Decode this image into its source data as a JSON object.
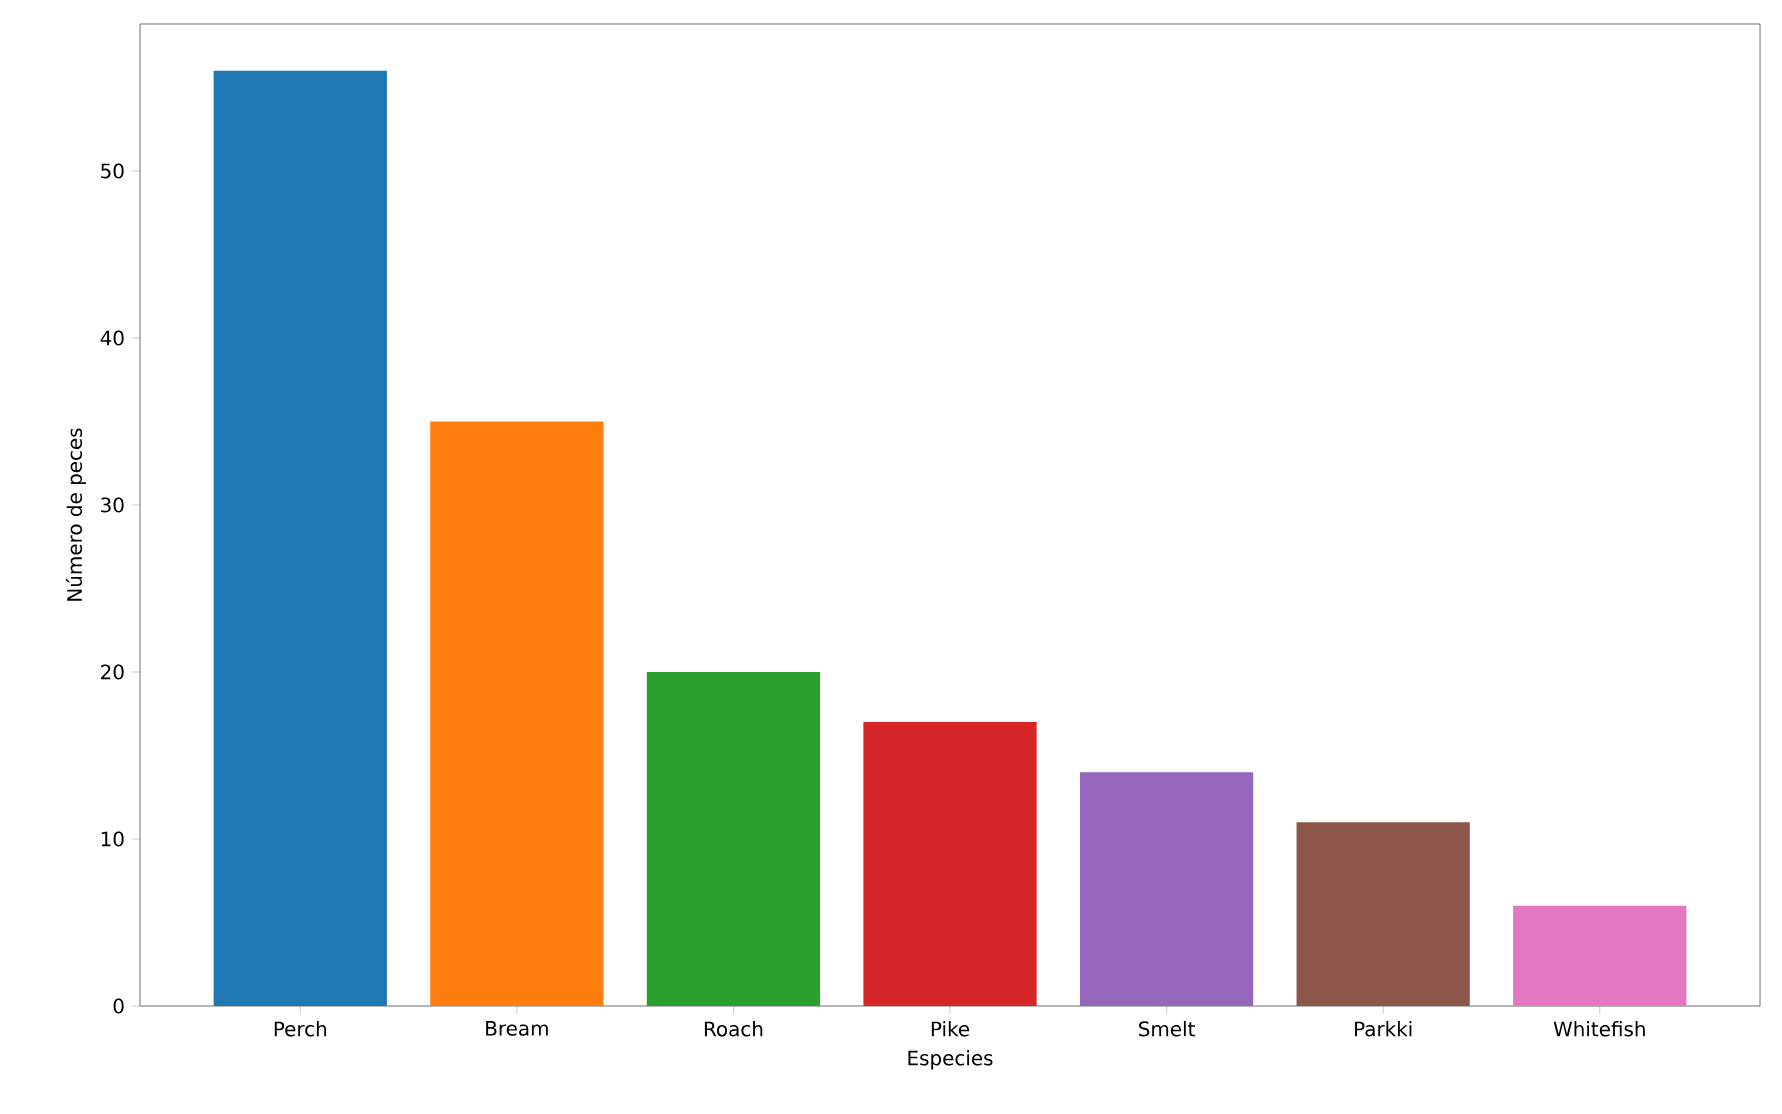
{
  "chart_data": {
    "type": "bar",
    "xlabel": "Especies",
    "ylabel": "Número de peces",
    "categories": [
      "Perch",
      "Bream",
      "Roach",
      "Pike",
      "Smelt",
      "Parkki",
      "Whitefish"
    ],
    "values": [
      56,
      35,
      20,
      17,
      14,
      11,
      6
    ],
    "colors": [
      "#1f77b4",
      "#ff7f0e",
      "#2ca02c",
      "#d62728",
      "#9467bd",
      "#8c564b",
      "#e377c2"
    ],
    "ylim": [
      0,
      58.8
    ],
    "yticks": [
      0,
      10,
      20,
      30,
      40,
      50
    ],
    "grid": false
  }
}
